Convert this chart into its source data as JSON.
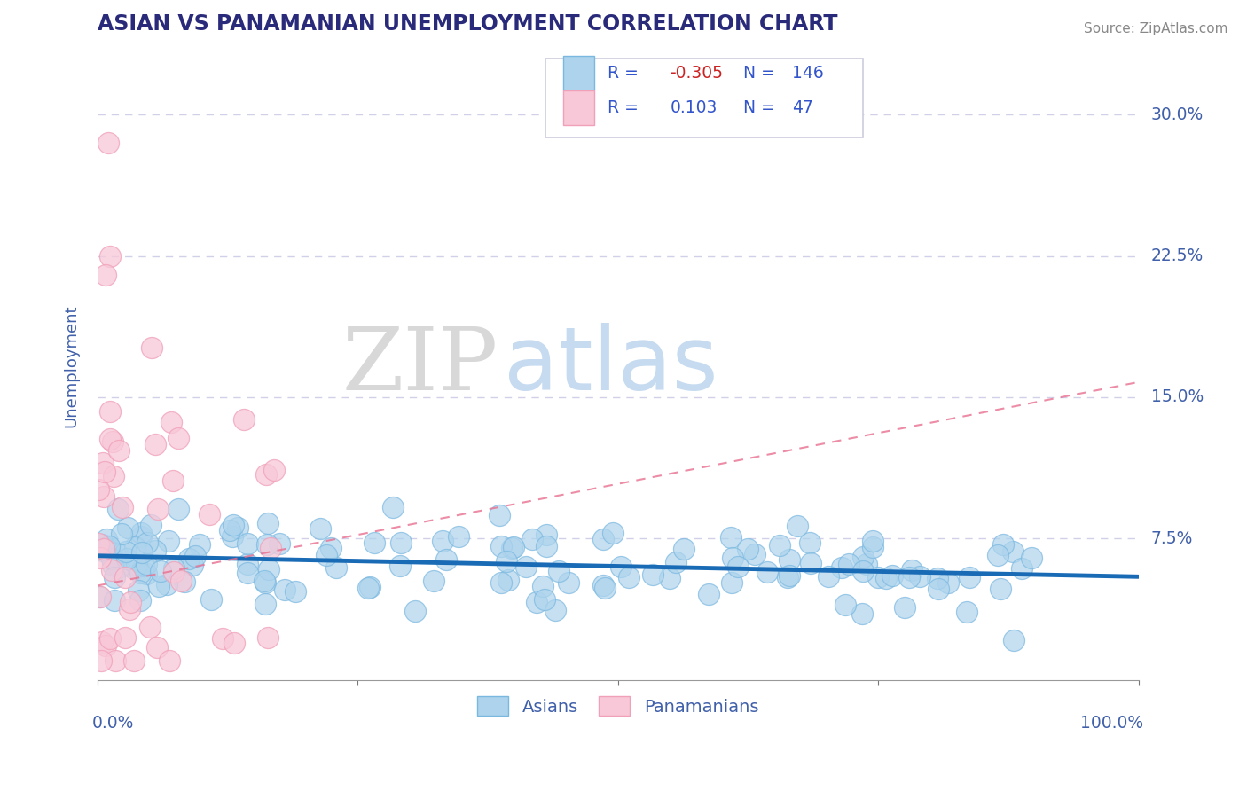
{
  "title": "ASIAN VS PANAMANIAN UNEMPLOYMENT CORRELATION CHART",
  "source": "Source: ZipAtlas.com",
  "ylabel": "Unemployment",
  "legend_labels": [
    "Asians",
    "Panamanians"
  ],
  "asian_R": -0.305,
  "asian_N": 146,
  "pana_R": 0.103,
  "pana_N": 47,
  "xlim": [
    0,
    1.0
  ],
  "ylim": [
    0,
    0.333
  ],
  "asian_color": "#7ab8e0",
  "asian_color_fill": "#aed4ed",
  "pana_color": "#f0a0b8",
  "pana_color_fill": "#f8c8d8",
  "trend_asian_color": "#1a6bb5",
  "trend_pana_color": "#e87090",
  "background_color": "#ffffff",
  "title_color": "#2a2a7a",
  "axis_color": "#4060aa",
  "grid_color": "#d0d0e8",
  "legend_value_color": "#3355cc",
  "legend_neg_color": "#cc2222",
  "seed": 7
}
